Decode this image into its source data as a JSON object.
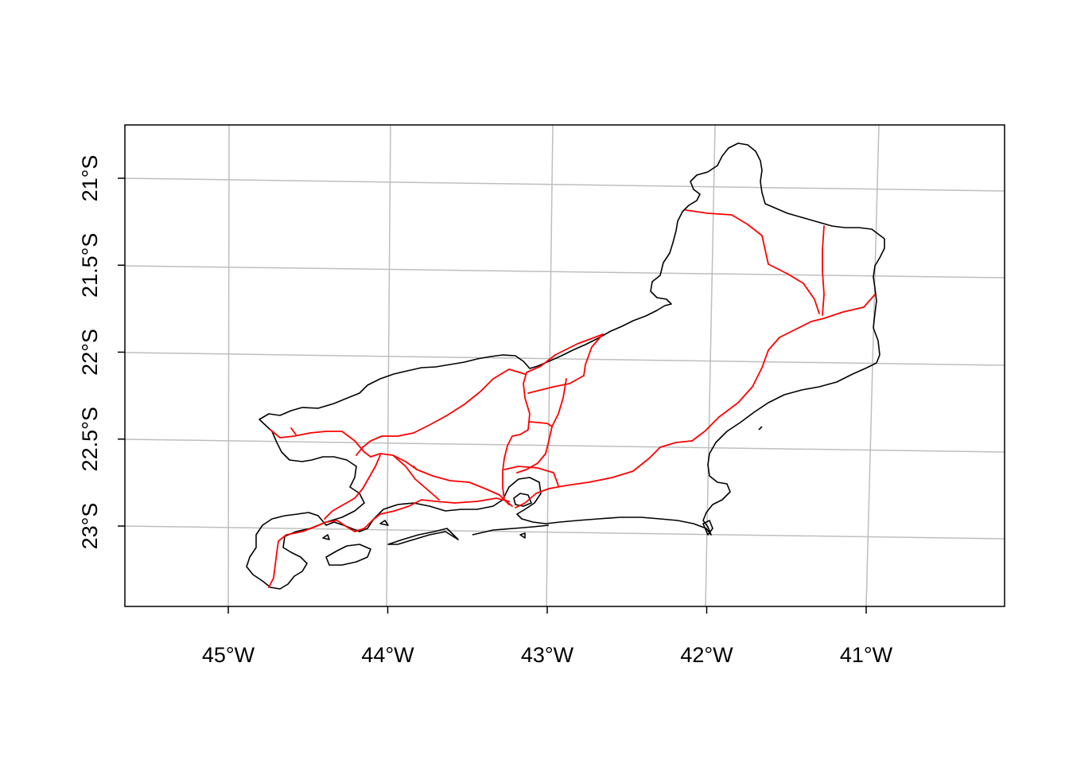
{
  "map": {
    "x_axis": {
      "ticks": [
        {
          "label": "45°W",
          "value": -45
        },
        {
          "label": "44°W",
          "value": -44
        },
        {
          "label": "43°W",
          "value": -43
        },
        {
          "label": "42°W",
          "value": -42
        },
        {
          "label": "41°W",
          "value": -41
        }
      ]
    },
    "y_axis": {
      "ticks": [
        {
          "label": "21°S",
          "value": -21
        },
        {
          "label": "21.5°S",
          "value": -21.5
        },
        {
          "label": "22°S",
          "value": -22
        },
        {
          "label": "22.5°S",
          "value": -22.5
        },
        {
          "label": "23°S",
          "value": -23
        }
      ]
    },
    "colors": {
      "boundary": "#000000",
      "roads": "#ff0000",
      "graticule": "#bebebe",
      "frame": "#000000"
    }
  }
}
